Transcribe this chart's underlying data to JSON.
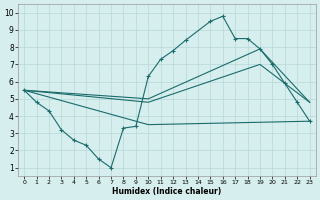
{
  "title": "",
  "xlabel": "Humidex (Indice chaleur)",
  "bg_color": "#d6eeee",
  "grid_color": "#b8d8d8",
  "line_color": "#1a6b6b",
  "xlim": [
    -0.5,
    23.5
  ],
  "ylim": [
    0.5,
    10.5
  ],
  "xticks": [
    0,
    1,
    2,
    3,
    4,
    5,
    6,
    7,
    8,
    9,
    10,
    11,
    12,
    13,
    14,
    15,
    16,
    17,
    18,
    19,
    20,
    21,
    22,
    23
  ],
  "yticks": [
    1,
    2,
    3,
    4,
    5,
    6,
    7,
    8,
    9,
    10
  ],
  "main_line": {
    "x": [
      0,
      1,
      2,
      3,
      4,
      5,
      6,
      7,
      8,
      9,
      10,
      11,
      12,
      13,
      15,
      16,
      17,
      18,
      19,
      20,
      21,
      22,
      23
    ],
    "y": [
      5.5,
      4.8,
      4.3,
      3.2,
      2.6,
      2.3,
      1.5,
      1.0,
      3.3,
      3.4,
      6.3,
      7.3,
      7.8,
      8.4,
      9.5,
      9.8,
      8.5,
      8.5,
      7.9,
      7.0,
      5.9,
      4.8,
      3.7
    ]
  },
  "line1": {
    "x": [
      0,
      10,
      19,
      23
    ],
    "y": [
      5.5,
      5.0,
      7.9,
      4.8
    ]
  },
  "line2": {
    "x": [
      0,
      10,
      19,
      23
    ],
    "y": [
      5.5,
      4.8,
      7.0,
      4.8
    ]
  },
  "line3": {
    "x": [
      0,
      10,
      23
    ],
    "y": [
      5.5,
      3.5,
      3.7
    ]
  }
}
